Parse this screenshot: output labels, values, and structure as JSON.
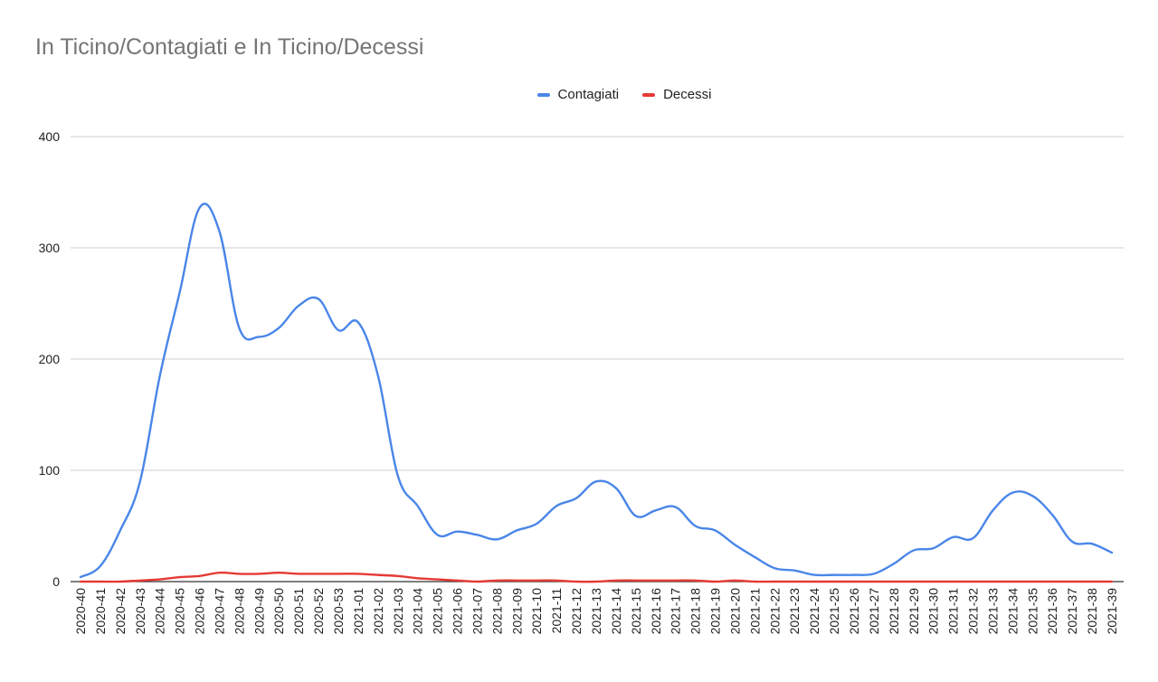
{
  "chart_data": {
    "type": "line",
    "title": "In Ticino/Contagiati e In Ticino/Decessi",
    "legend_position": "top-center",
    "grid": true,
    "ylim": [
      0,
      400
    ],
    "yticks": [
      0,
      100,
      200,
      300,
      400
    ],
    "categories": [
      "2020-40",
      "2020-41",
      "2020-42",
      "2020-43",
      "2020-44",
      "2020-45",
      "2020-46",
      "2020-47",
      "2020-48",
      "2020-49",
      "2020-50",
      "2020-51",
      "2020-52",
      "2020-53",
      "2021-01",
      "2021-02",
      "2021-03",
      "2021-04",
      "2021-05",
      "2021-06",
      "2021-07",
      "2021-08",
      "2021-09",
      "2021-10",
      "2021-11",
      "2021-12",
      "2021-13",
      "2021-14",
      "2021-15",
      "2021-16",
      "2021-17",
      "2021-18",
      "2021-19",
      "2021-20",
      "2021-21",
      "2021-22",
      "2021-23",
      "2021-24",
      "2021-25",
      "2021-26",
      "2021-27",
      "2021-28",
      "2021-29",
      "2021-30",
      "2021-31",
      "2021-32",
      "2021-33",
      "2021-34",
      "2021-35",
      "2021-36",
      "2021-37",
      "2021-38",
      "2021-39"
    ],
    "series": [
      {
        "name": "Contagiati",
        "color": "#4a86e8",
        "values": [
          4,
          14,
          46,
          90,
          185,
          260,
          336,
          315,
          228,
          220,
          228,
          248,
          254,
          226,
          233,
          185,
          95,
          68,
          42,
          45,
          42,
          38,
          46,
          52,
          68,
          75,
          90,
          84,
          59,
          64,
          67,
          50,
          46,
          33,
          22,
          12,
          10,
          6,
          6,
          6,
          7,
          16,
          28,
          30,
          40,
          39,
          64,
          80,
          77,
          60,
          36,
          34,
          26
        ]
      },
      {
        "name": "Decessi",
        "color": "#e53935",
        "values": [
          0,
          0,
          0,
          1,
          2,
          4,
          5,
          8,
          7,
          7,
          8,
          7,
          7,
          7,
          7,
          6,
          5,
          3,
          2,
          1,
          0,
          1,
          1,
          1,
          1,
          0,
          0,
          1,
          1,
          1,
          1,
          1,
          0,
          1,
          0,
          0,
          0,
          0,
          0,
          0,
          0,
          0,
          0,
          0,
          0,
          0,
          0,
          0,
          0,
          0,
          0,
          0,
          0
        ]
      }
    ]
  }
}
